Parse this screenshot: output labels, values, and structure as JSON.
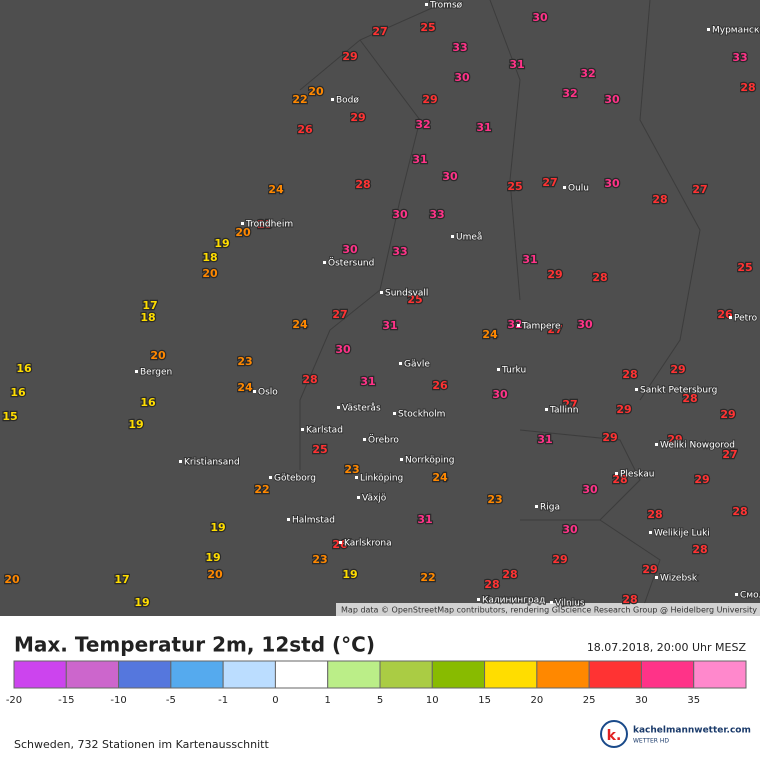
{
  "header": {
    "title": "Max. Temperatur 2m, 12std (°C)",
    "timestamp": "18.07.2018, 20:00 Uhr MESZ"
  },
  "legend": {
    "ticks": [
      -20,
      -15,
      -10,
      -5,
      -1,
      0,
      1,
      5,
      10,
      15,
      20,
      25,
      30,
      35
    ],
    "colors": [
      "#cc44ee",
      "#cc66cc",
      "#5577dd",
      "#55aaee",
      "#bbddff",
      "#ffffff",
      "#bbee88",
      "#aacc44",
      "#88bb00",
      "#ffdd00",
      "#ff8800",
      "#ff3333",
      "#ff3388",
      "#ff88cc"
    ]
  },
  "stations": [
    22,
    20,
    29,
    27,
    25,
    33,
    30,
    31,
    32,
    30,
    33,
    28,
    29,
    32,
    31,
    30,
    32,
    29,
    26,
    31,
    30,
    28,
    24,
    25,
    20,
    19,
    18,
    20,
    30,
    33,
    30,
    33,
    25,
    27,
    30,
    27,
    28,
    31,
    29,
    28,
    25,
    26,
    24,
    27,
    30,
    31,
    25,
    24,
    32,
    27,
    30,
    28,
    29,
    24,
    17,
    18,
    20,
    16,
    16,
    15,
    16,
    19,
    23,
    28,
    31,
    26,
    30,
    27,
    29,
    28,
    29,
    29,
    27,
    31,
    29,
    25,
    23,
    24,
    23,
    31,
    22,
    19,
    19,
    20,
    17,
    19,
    20,
    26,
    23,
    19,
    22,
    28,
    29,
    30,
    28,
    28,
    29,
    28,
    28,
    29,
    28,
    28,
    30
  ],
  "cities": [
    "Tromsø",
    "Bodø",
    "Trondheim",
    "Östersund",
    "Sundsvall",
    "Umeå",
    "Oulu",
    "Gävle",
    "Turku",
    "Tampere",
    "Västerås",
    "Stockholm",
    "Karlstad",
    "Örebro",
    "Norrköping",
    "Oslo",
    "Kristiansand",
    "Bergen",
    "Göteborg",
    "Linköping",
    "Växjö",
    "Halmstad",
    "Karlskrona",
    "Riga",
    "Tallinn",
    "Sankt Petersburg",
    "Weliki Nowgorod",
    "Pleskau",
    "Welikije Luki",
    "Wizebsk",
    "Vilnius",
    "Мурманск",
    "Petro",
    "Калининград",
    "Смоле"
  ],
  "attribution": "Map data © OpenStreetMap contributors, rendering GIScience Research Group @ Heidelberg University",
  "footer": "Schweden, 732 Stationen im Kartenausschnitt",
  "logo": {
    "name": "kachelmannwetter.com",
    "tagline": "WETTER HD"
  }
}
